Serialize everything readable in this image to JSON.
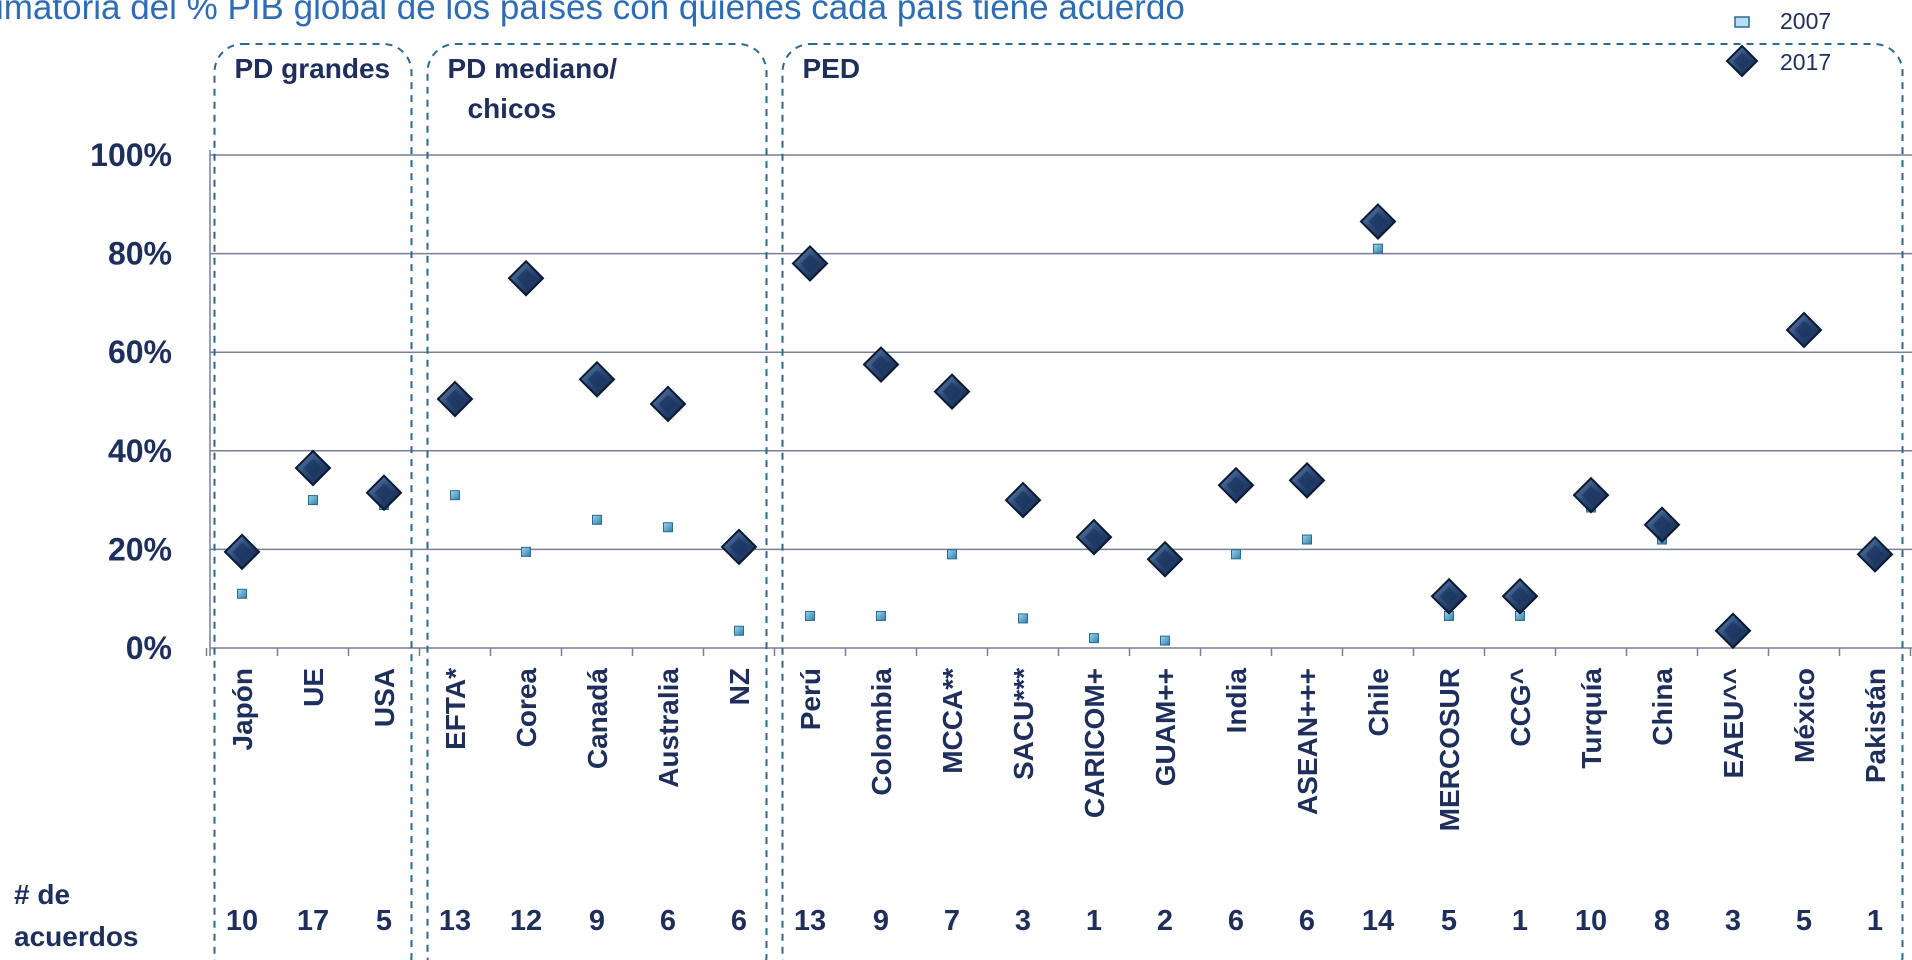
{
  "title_fragment": "imatoria del % PIB global de los países con quienes cada país tiene acuerdo",
  "counts_label_line1": "# de",
  "counts_label_line2": "acuerdos",
  "groups": [
    {
      "label_line1": "PD grandes",
      "label_line2": "",
      "from": 0,
      "to": 2
    },
    {
      "label_line1": "PD mediano/",
      "label_line2": "chicos",
      "from": 3,
      "to": 7
    },
    {
      "label_line1": "PED",
      "label_line2": "",
      "from": 8,
      "to": 23
    }
  ],
  "colors": {
    "text": "#1f2f5c",
    "title": "#2e6db3",
    "grid": "#7a7f99",
    "box": "#2a6a8e",
    "diamond_dark": "#152c50",
    "diamond_light": "#4a6e96",
    "square_2007": "#3a95c0"
  },
  "chart_data": {
    "type": "scatter",
    "categories": [
      "Japón",
      "UE",
      "USA",
      "EFTA*",
      "Corea",
      "Canadá",
      "Australia",
      "NZ",
      "Perú",
      "Colombia",
      "MCCA**",
      "SACU***",
      "CARICOM+",
      "GUAM++",
      "India",
      "ASEAN+++",
      "Chile",
      "MERCOSUR",
      "CCG^",
      "Turquía",
      "China",
      "EAEU^^",
      "México",
      "Pakistán"
    ],
    "series": [
      {
        "name": "2007",
        "marker": "square",
        "values": [
          11,
          30,
          29,
          31,
          19.5,
          26,
          24.5,
          3.5,
          6.5,
          6.5,
          19,
          6,
          2,
          1.5,
          19,
          22,
          81,
          6.5,
          6.5,
          28.5,
          22,
          2.5,
          64,
          18.5
        ]
      },
      {
        "name": "2017",
        "marker": "diamond",
        "values": [
          19.5,
          36.5,
          31.5,
          50.5,
          75,
          54.5,
          49.5,
          20.5,
          78,
          57.5,
          52,
          30,
          22.5,
          18,
          33,
          34,
          86.5,
          10.5,
          10.5,
          31,
          25,
          3.5,
          64.5,
          19
        ]
      }
    ],
    "counts": [
      10,
      17,
      5,
      13,
      12,
      9,
      6,
      6,
      13,
      9,
      7,
      3,
      1,
      2,
      6,
      6,
      14,
      5,
      1,
      10,
      8,
      3,
      5,
      1
    ],
    "yticks": [
      "0%",
      "20%",
      "40%",
      "60%",
      "80%",
      "100%"
    ],
    "ylim": [
      0,
      100
    ],
    "grid": true,
    "legend_position": "top-right"
  }
}
